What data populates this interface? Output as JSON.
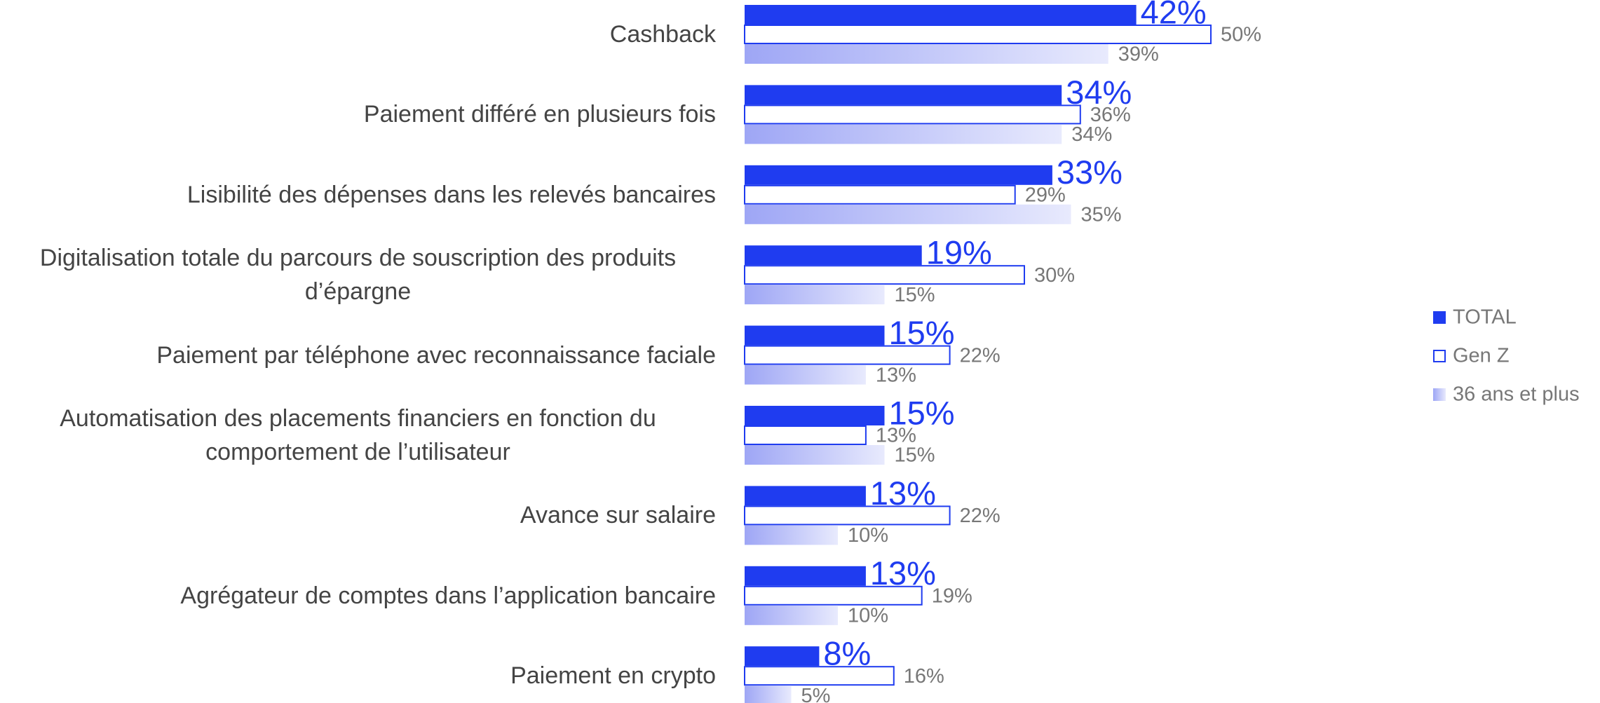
{
  "chart_data": {
    "type": "bar",
    "orientation": "horizontal",
    "categories": [
      "Cashback",
      "Paiement différé en plusieurs fois",
      "Lisibilité des dépenses dans les relevés bancaires",
      "Digitalisation totale du parcours de souscription des produits d’épargne",
      "Paiement par téléphone avec reconnaissance faciale",
      "Automatisation des placements financiers en fonction du comportement de l’utilisateur",
      "Avance sur salaire",
      "Agrégateur de comptes dans l’application bancaire",
      "Paiement en crypto"
    ],
    "series": [
      {
        "name": "TOTAL",
        "color": "#1f3cf0",
        "style": "solid",
        "values": [
          42,
          34,
          33,
          19,
          15,
          15,
          13,
          13,
          8
        ],
        "value_labels": [
          "42%",
          "34%",
          "33%",
          "19%",
          "15%",
          "15%",
          "13%",
          "13%",
          "8%"
        ]
      },
      {
        "name": "Gen Z",
        "color": "#1f3cf0",
        "style": "outline",
        "values": [
          50,
          36,
          29,
          30,
          22,
          13,
          22,
          19,
          16
        ],
        "value_labels": [
          "50%",
          "36%",
          "29%",
          "30%",
          "22%",
          "13%",
          "22%",
          "19%",
          "16%"
        ]
      },
      {
        "name": "36 ans et plus",
        "color": "#9ea6f5",
        "style": "gradient",
        "values": [
          39,
          34,
          35,
          15,
          13,
          15,
          10,
          10,
          5
        ],
        "value_labels": [
          "39%",
          "34%",
          "35%",
          "15%",
          "13%",
          "15%",
          "10%",
          "10%",
          "5%"
        ]
      }
    ],
    "legend": "right"
  }
}
